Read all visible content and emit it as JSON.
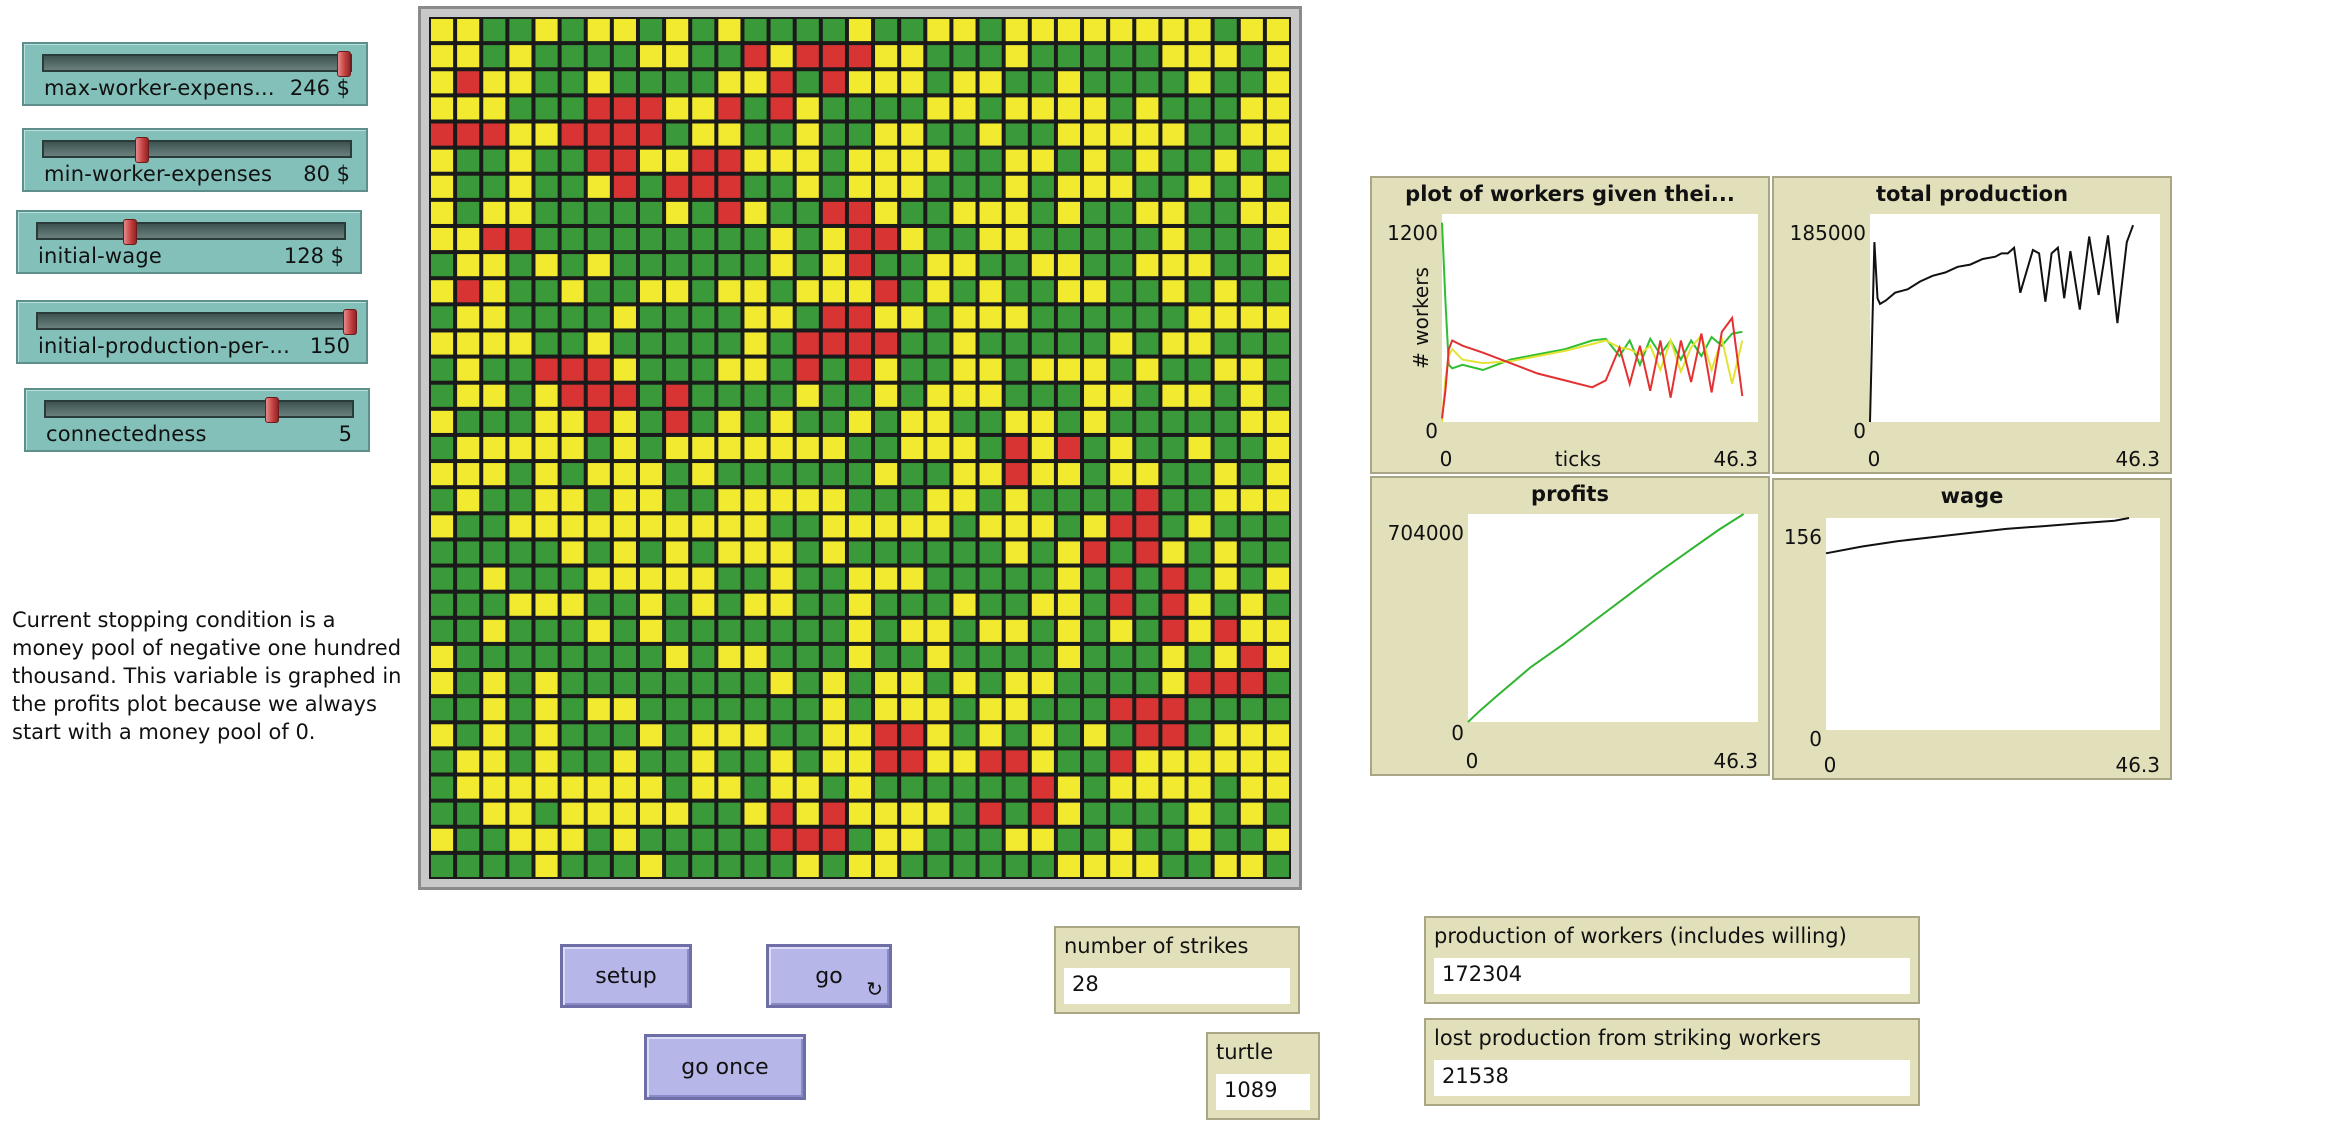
{
  "sliders": [
    {
      "label": "max-worker-expens...",
      "value": "246 $",
      "fraction": 0.98
    },
    {
      "label": "min-worker-expenses",
      "value": "80 $",
      "fraction": 0.32
    },
    {
      "label": "initial-wage",
      "value": "128 $",
      "fraction": 0.3
    },
    {
      "label": "initial-production-per-...",
      "value": "150",
      "fraction": 1.0
    },
    {
      "label": "connectedness",
      "value": "5",
      "fraction": 0.74
    }
  ],
  "note": "Current stopping condition is a money pool of negative one hundred thousand. This variable is graphed in the profits plot because we always start with a money pool of 0.",
  "world": {
    "cols": 33,
    "rows": 33,
    "colors": {
      "green": "#3a9a3a",
      "yellow": "#f2ea2f",
      "red": "#d93434"
    }
  },
  "buttons": {
    "setup": "setup",
    "go": "go",
    "go_once": "go once"
  },
  "monitors": {
    "strikes": {
      "label": "number of strikes",
      "value": "28"
    },
    "turtle": {
      "label": "turtle",
      "value": "1089"
    },
    "production": {
      "label": "production of workers (includes willing)",
      "value": "172304"
    },
    "lost": {
      "label": "lost production from striking workers",
      "value": "21538"
    }
  },
  "plots": {
    "workers": {
      "title": "plot of workers given thei...",
      "ymax": "1200",
      "ymin": "0",
      "xmin": "0",
      "xmax": "46.3",
      "xlabel": "ticks",
      "ylabel": "# workers"
    },
    "production": {
      "title": "total production",
      "ymax": "185000",
      "ymin": "0",
      "xmin": "0",
      "xmax": "46.3"
    },
    "profits": {
      "title": "profits",
      "ymax": "704000",
      "ymin": "0",
      "xmin": "0",
      "xmax": "46.3"
    },
    "wage": {
      "title": "wage",
      "ymax": "156",
      "ymin": "0",
      "xmin": "0",
      "xmax": "46.3"
    }
  },
  "chart_data": [
    {
      "type": "line",
      "title": "plot of workers given thei...",
      "xlabel": "ticks",
      "ylabel": "# workers",
      "xlim": [
        0,
        46.3
      ],
      "ylim": [
        0,
        1200
      ],
      "series": [
        {
          "color": "#2fbf2f",
          "x": [
            0,
            0.5,
            1,
            1.5,
            3,
            6,
            10,
            14,
            18,
            22,
            24,
            26,
            27.5,
            29,
            30.5,
            32,
            33.5,
            35,
            36.5,
            38,
            39.5,
            41,
            42.5,
            44
          ],
          "y": [
            1150,
            700,
            330,
            310,
            330,
            300,
            360,
            390,
            420,
            470,
            480,
            380,
            470,
            330,
            480,
            390,
            470,
            360,
            470,
            380,
            490,
            440,
            510,
            520
          ]
        },
        {
          "color": "#e3e336",
          "x": [
            0,
            0.5,
            1,
            1.5,
            3,
            6,
            10,
            14,
            18,
            22,
            24,
            26,
            27.5,
            29,
            30.5,
            32,
            33.5,
            35,
            36.5,
            38,
            39.5,
            41,
            42.5,
            44
          ],
          "y": [
            0,
            250,
            380,
            420,
            360,
            340,
            350,
            380,
            410,
            450,
            470,
            430,
            420,
            390,
            440,
            300,
            470,
            290,
            430,
            500,
            300,
            480,
            220,
            470
          ]
        },
        {
          "color": "#e33131",
          "x": [
            0,
            0.5,
            1,
            1.5,
            3,
            6,
            10,
            14,
            18,
            22,
            24,
            26,
            27.5,
            29,
            30.5,
            32,
            33.5,
            35,
            36.5,
            38,
            39.5,
            41,
            42.5,
            44
          ],
          "y": [
            20,
            180,
            420,
            470,
            440,
            400,
            340,
            280,
            240,
            200,
            240,
            430,
            220,
            440,
            180,
            470,
            140,
            470,
            230,
            510,
            170,
            520,
            600,
            150
          ]
        }
      ]
    },
    {
      "type": "line",
      "title": "total production",
      "xlim": [
        0,
        46.3
      ],
      "ylim": [
        0,
        185000
      ],
      "series": [
        {
          "color": "#111111",
          "x": [
            0,
            0.7,
            1.2,
            1.6,
            2.5,
            4,
            6,
            8,
            10,
            12,
            14,
            16,
            18,
            20,
            21,
            22,
            23,
            24,
            26,
            27,
            28,
            29,
            30,
            31,
            32,
            33.5,
            35,
            36.5,
            38,
            39.5,
            41,
            42
          ],
          "y": [
            0,
            160000,
            110000,
            105000,
            108000,
            115000,
            118000,
            125000,
            130000,
            133000,
            138000,
            140000,
            145000,
            147000,
            150000,
            150000,
            155000,
            115000,
            153000,
            150000,
            107000,
            150000,
            155000,
            110000,
            152000,
            100000,
            165000,
            113000,
            166000,
            88000,
            160000,
            175000
          ]
        }
      ]
    },
    {
      "type": "line",
      "title": "profits",
      "xlim": [
        0,
        46.3
      ],
      "ylim": [
        0,
        704000
      ],
      "series": [
        {
          "color": "#2fb42f",
          "x": [
            0,
            2,
            5,
            10,
            15,
            20,
            25,
            30,
            35,
            40,
            44
          ],
          "y": [
            0,
            40000,
            95000,
            185000,
            260000,
            340000,
            420000,
            500000,
            575000,
            650000,
            704000
          ]
        }
      ]
    },
    {
      "type": "line",
      "title": "wage",
      "xlim": [
        0,
        46.3
      ],
      "ylim": [
        0,
        156
      ],
      "series": [
        {
          "color": "#111111",
          "x": [
            0,
            5,
            10,
            15,
            20,
            25,
            30,
            35,
            40,
            42
          ],
          "y": [
            130,
            135,
            139,
            142,
            145,
            148,
            150,
            152,
            154,
            156
          ]
        }
      ]
    }
  ]
}
